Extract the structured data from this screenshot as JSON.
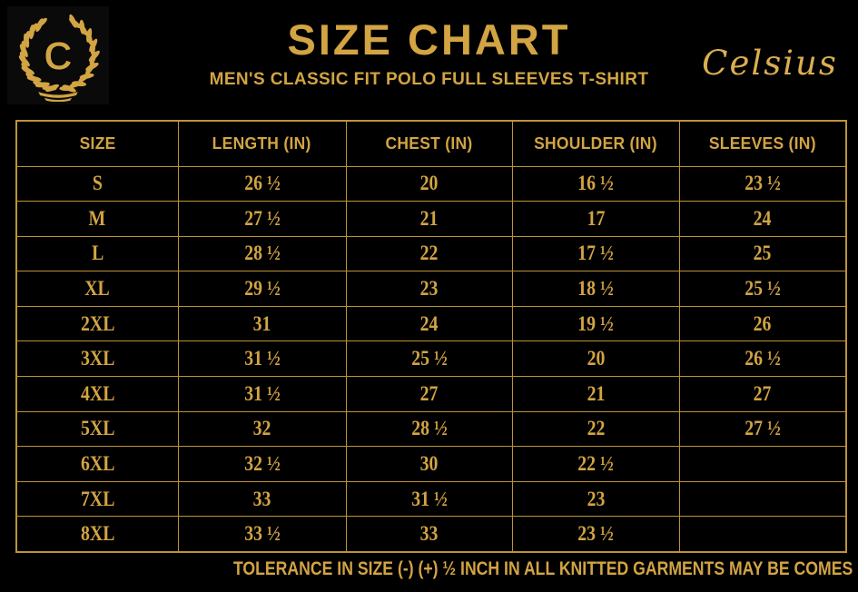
{
  "brand": {
    "logo_letter": "C",
    "name": "Celsius"
  },
  "header": {
    "title": "SIZE CHART",
    "subtitle": "MEN'S CLASSIC FIT POLO FULL SLEEVES T-SHIRT"
  },
  "table": {
    "columns": [
      "SIZE",
      "LENGTH (IN)",
      "CHEST (IN)",
      "SHOULDER (IN)",
      "SLEEVES (IN)"
    ],
    "rows": [
      {
        "size": "S",
        "length": "26 ½",
        "chest": "20",
        "shoulder": "16 ½",
        "sleeves": "23 ½"
      },
      {
        "size": "M",
        "length": "27 ½",
        "chest": "21",
        "shoulder": "17",
        "sleeves": "24"
      },
      {
        "size": "L",
        "length": "28 ½",
        "chest": "22",
        "shoulder": "17 ½",
        "sleeves": "25"
      },
      {
        "size": "XL",
        "length": "29 ½",
        "chest": "23",
        "shoulder": "18 ½",
        "sleeves": "25 ½"
      },
      {
        "size": "2XL",
        "length": "31",
        "chest": "24",
        "shoulder": "19 ½",
        "sleeves": "26"
      },
      {
        "size": "3XL",
        "length": "31 ½",
        "chest": "25 ½",
        "shoulder": "20",
        "sleeves": "26 ½"
      },
      {
        "size": "4XL",
        "length": "31 ½",
        "chest": "27",
        "shoulder": "21",
        "sleeves": "27"
      },
      {
        "size": "5XL",
        "length": "32",
        "chest": "28 ½",
        "shoulder": "22",
        "sleeves": "27 ½"
      },
      {
        "size": "6XL",
        "length": "32 ½",
        "chest": "30",
        "shoulder": "22 ½",
        "sleeves": ""
      },
      {
        "size": "7XL",
        "length": "33",
        "chest": "31 ½",
        "shoulder": "23",
        "sleeves": ""
      },
      {
        "size": "8XL",
        "length": "33 ½",
        "chest": "33",
        "shoulder": "23 ½",
        "sleeves": ""
      }
    ]
  },
  "footer": {
    "note": "TOLERANCE IN SIZE (-) (+)  ½ INCH IN ALL KNITTED GARMENTS MAY BE COMES"
  },
  "colors": {
    "background": "#000000",
    "gold_text": "#d2a443",
    "gold_bright": "#dcae52",
    "table_border": "#bd9339"
  }
}
